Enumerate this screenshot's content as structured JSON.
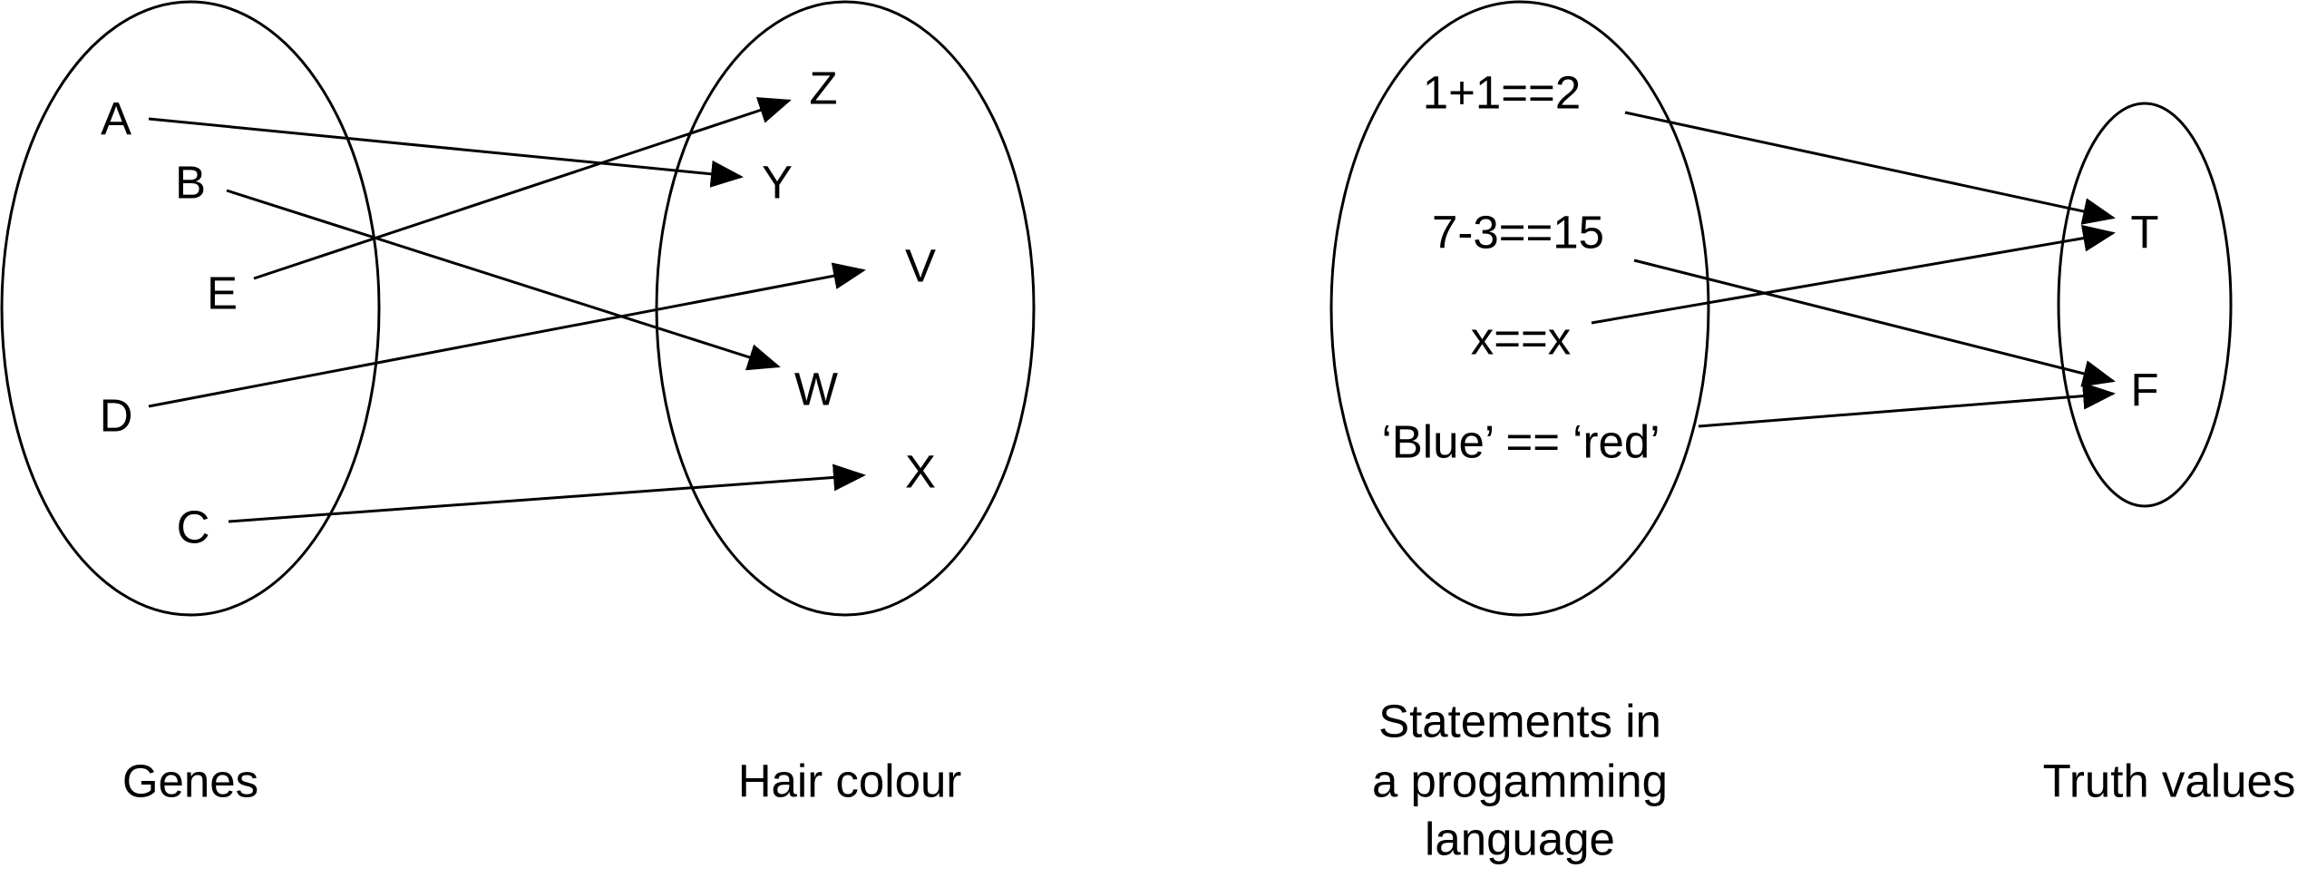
{
  "diagrams": [
    {
      "domain_caption": [
        "Genes"
      ],
      "codomain_caption": [
        "Hair colour"
      ],
      "domain": [
        "A",
        "B",
        "E",
        "D",
        "C"
      ],
      "codomain": [
        "Z",
        "Y",
        "V",
        "W",
        "X"
      ],
      "mapping": [
        {
          "from": "A",
          "to": "Y"
        },
        {
          "from": "B",
          "to": "W"
        },
        {
          "from": "E",
          "to": "Z"
        },
        {
          "from": "D",
          "to": "V"
        },
        {
          "from": "C",
          "to": "X"
        }
      ]
    },
    {
      "domain_caption": [
        "Statements in",
        "a progamming",
        "language"
      ],
      "codomain_caption": [
        "Truth values"
      ],
      "domain": [
        "1+1==2",
        "7-3==15",
        "x==x",
        "‘Blue’ == ‘red’"
      ],
      "codomain": [
        "T",
        "F"
      ],
      "mapping": [
        {
          "from": "1+1==2",
          "to": "T"
        },
        {
          "from": "7-3==15",
          "to": "F"
        },
        {
          "from": "x==x",
          "to": "T"
        },
        {
          "from": "‘Blue’ == ‘red’",
          "to": "F"
        }
      ]
    }
  ]
}
